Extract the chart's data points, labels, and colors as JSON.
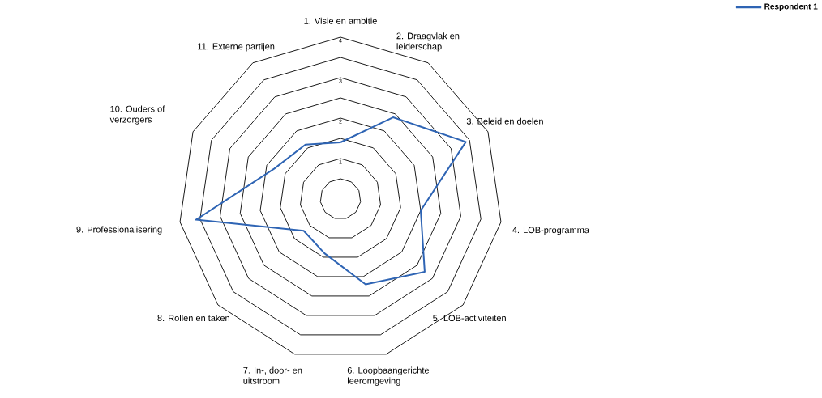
{
  "chart_data": {
    "type": "radar",
    "categories": [
      "1. Visie en ambitie",
      "2. Draagvlak en leiderschap",
      "3. Beleid en doelen",
      "4. LOB-programma",
      "5. LOB-activiteiten",
      "6. Loopbaangerichte leeromgeving",
      "7. In-, door- en uitstroom",
      "8. Rollen en taken",
      "9. Professionalisering",
      "10. Ouders of verzorgers",
      "11. Externe partijen"
    ],
    "series": [
      {
        "name": "Respondent 1",
        "color": "#2e64b4",
        "values": [
          1.4,
          2.4,
          3.4,
          2.0,
          2.75,
          2.2,
          1.4,
          1.2,
          3.6,
          1.8,
          1.6
        ]
      }
    ],
    "ylim": [
      0,
      4
    ],
    "yticks": [
      1,
      2,
      3,
      4
    ],
    "grid": true,
    "legend": "top right"
  }
}
